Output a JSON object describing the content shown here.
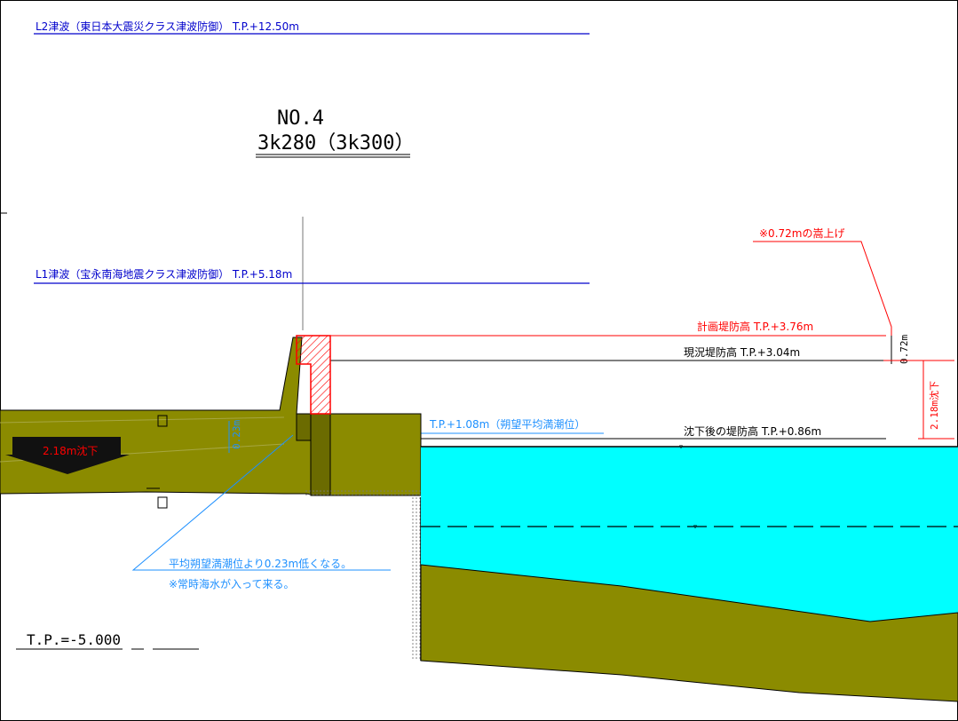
{
  "labels": {
    "l2_tsunami": "L2津波（東日本大震災クラス津波防御） T.P.+12.50m",
    "section_no": "NO.4",
    "section_station": "3k280（3k300）",
    "l1_tsunami": "L1津波（宝永南海地震クラス津波防御） T.P.+5.18m",
    "raise_note": "※0.72mの嵩上げ",
    "planned_crest": "計画堤防高 T.P.+3.76m",
    "current_crest": "現況堤防高 T.P.+3.04m",
    "raise_dim": "0.72m",
    "subsidence_dim": "2.18m沈下",
    "hwl": "T.P.+1.08m（朔望平均満潮位）",
    "after_subsidence": "沈下後の堤防高 T.P.+0.86m",
    "arrow_label": "2.18m沈下",
    "small_dim": "0.23m",
    "note_line1": "平均朔望満潮位より0.23m低くなる。",
    "note_line2": "※常時海水が入って来る。",
    "datum": "T.P.=-5.000"
  },
  "colors": {
    "tsunami_line": "#0000cc",
    "planned": "#ff0000",
    "water": "#00ffff",
    "soil": "#8b8b00",
    "annotation_blue": "#1e90ff"
  }
}
